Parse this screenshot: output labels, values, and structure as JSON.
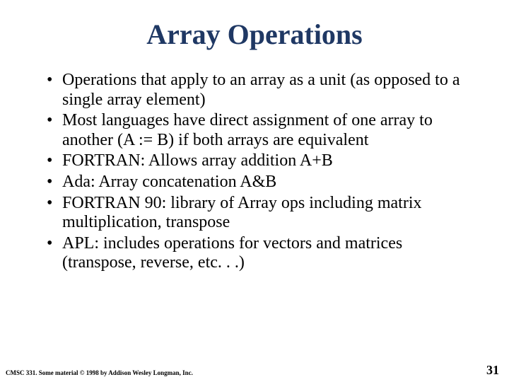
{
  "slide": {
    "title": "Array Operations",
    "bullets": [
      "Operations that apply to an array as a unit (as opposed to a single array element)",
      "Most languages have direct assignment of one array to another (A := B) if both arrays are equivalent",
      "FORTRAN:  Allows array addition A+B",
      "Ada:  Array concatenation A&B",
      "FORTRAN 90:  library of Array ops including matrix multiplication, transpose",
      "APL:  includes operations for vectors and matrices (transpose, reverse, etc. . .)"
    ],
    "footer": "CMSC 331.  Some material © 1998 by Addison Wesley Longman, Inc.",
    "page_number": "31"
  },
  "styles": {
    "title_color": "#1f3864",
    "title_fontsize": 40,
    "body_fontsize": 24,
    "body_color": "#000000",
    "background_color": "#ffffff",
    "footer_fontsize": 9,
    "pagenum_fontsize": 18,
    "font_family": "Times New Roman"
  }
}
